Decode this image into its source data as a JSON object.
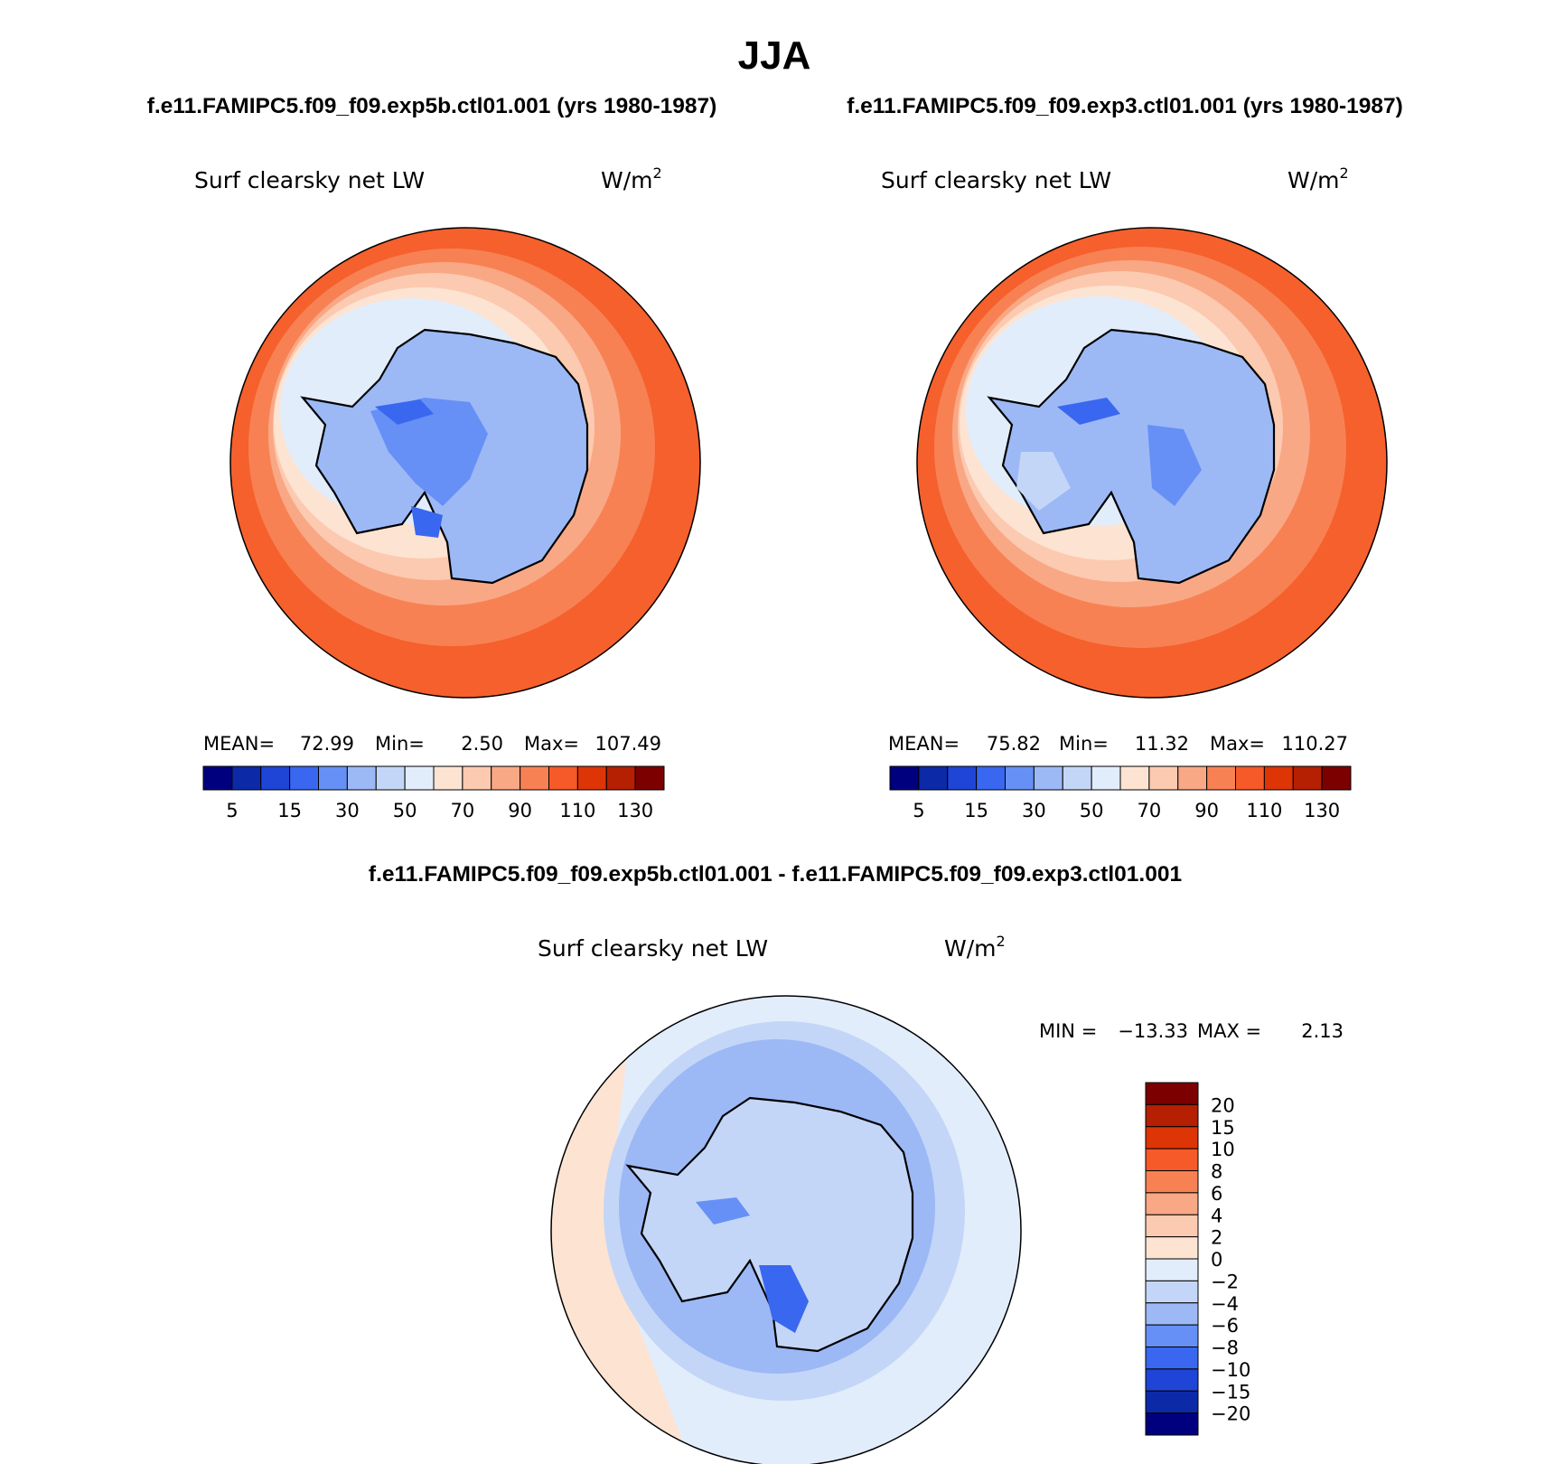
{
  "season": "JJA",
  "panel_titles": {
    "left": "f.e11.FAMIPC5.f09_f09.exp5b.ctl01.001 (yrs 1980-1987)",
    "right": "f.e11.FAMIPC5.f09_f09.exp3.ctl01.001 (yrs 1980-1987)",
    "diff": "f.e11.FAMIPC5.f09_f09.exp5b.ctl01.001 - f.e11.FAMIPC5.f09_f09.exp3.ctl01.001"
  },
  "variable": "Surf clearsky net LW",
  "units": {
    "base": "W/m",
    "exp": "2"
  },
  "stats": {
    "left": {
      "mean_label": "MEAN=",
      "mean": "72.99",
      "min_label": "Min=",
      "min": "2.50",
      "max_label": "Max=",
      "max": "107.49"
    },
    "right": {
      "mean_label": "MEAN=",
      "mean": "75.82",
      "min_label": "Min=",
      "min": "11.32",
      "max_label": "Max=",
      "max": "110.27"
    },
    "diff": {
      "min_label": "MIN =",
      "min": "−13.33",
      "max_label": "MAX =",
      "max": "2.13"
    }
  },
  "colorbar_main": {
    "colors": [
      "#00007f",
      "#0c2aa8",
      "#1f45d6",
      "#3a67f0",
      "#6690f5",
      "#9cb9f6",
      "#c4d6f7",
      "#e2edfb",
      "#fde3d2",
      "#fccab0",
      "#f9a885",
      "#f88154",
      "#f55a28",
      "#dd3505",
      "#b51f02",
      "#7d0000"
    ],
    "tick_labels": [
      "5",
      "15",
      "30",
      "50",
      "70",
      "90",
      "110",
      "130"
    ]
  },
  "colorbar_diff": {
    "colors_top_to_bottom": [
      "#7d0000",
      "#b51f02",
      "#dd3505",
      "#f55a28",
      "#f88154",
      "#f9a885",
      "#fccab0",
      "#fde3d2",
      "#e2edfb",
      "#c4d6f7",
      "#9cb9f6",
      "#6690f5",
      "#3a67f0",
      "#1f45d6",
      "#0c2aa8",
      "#00007f"
    ],
    "tick_labels_top_to_bottom": [
      "20",
      "15",
      "10",
      "8",
      "6",
      "4",
      "2",
      "0",
      "−2",
      "−4",
      "−6",
      "−8",
      "−10",
      "−15",
      "−20"
    ]
  }
}
